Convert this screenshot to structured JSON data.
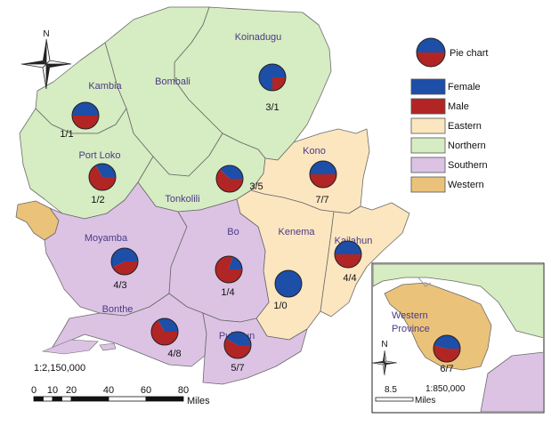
{
  "colors": {
    "northern": "#d6ecc2",
    "eastern": "#fce6c0",
    "southern": "#dcc3e4",
    "western": "#ebc27a",
    "female": "#1d4ea8",
    "male": "#b22525",
    "border": "#6a6a6a"
  },
  "north_label": "N",
  "districts": [
    {
      "id": "koinadugu",
      "name": "Koinadugu",
      "province": "northern",
      "female": 3,
      "male": 1,
      "ratio": "3/1"
    },
    {
      "id": "bombali",
      "name": "Bombali",
      "province": "northern"
    },
    {
      "id": "kambia",
      "name": "Kambia",
      "province": "northern",
      "female": 1,
      "male": 1,
      "ratio": "1/1"
    },
    {
      "id": "port-loko",
      "name": "Port Loko",
      "province": "northern",
      "female": 1,
      "male": 2,
      "ratio": "1/2"
    },
    {
      "id": "tonkolili",
      "name": "Tonkolili",
      "province": "northern",
      "female": 3,
      "male": 5,
      "ratio": "3/5"
    },
    {
      "id": "kono",
      "name": "Kono",
      "province": "eastern",
      "female": 7,
      "male": 7,
      "ratio": "7/7"
    },
    {
      "id": "kenema",
      "name": "Kenema",
      "province": "eastern",
      "female": 1,
      "male": 0,
      "ratio": "1/0"
    },
    {
      "id": "kailahun",
      "name": "Kailahun",
      "province": "eastern",
      "female": 4,
      "male": 4,
      "ratio": "4/4"
    },
    {
      "id": "moyamba",
      "name": "Moyamba",
      "province": "southern",
      "female": 4,
      "male": 3,
      "ratio": "4/3"
    },
    {
      "id": "bo",
      "name": "Bo",
      "province": "southern",
      "female": 1,
      "male": 4,
      "ratio": "1/4"
    },
    {
      "id": "bonthe",
      "name": "Bonthe",
      "province": "southern",
      "female": 4,
      "male": 8,
      "ratio": "4/8"
    },
    {
      "id": "pujehun",
      "name": "Pujehun",
      "province": "southern",
      "female": 5,
      "male": 7,
      "ratio": "5/7"
    }
  ],
  "legend": {
    "pie_label": "Pie chart",
    "items": [
      {
        "label": "Female",
        "color": "#1d4ea8"
      },
      {
        "label": "Male",
        "color": "#b22525"
      },
      {
        "label": "Eastern",
        "color": "#fce6c0"
      },
      {
        "label": "Northern",
        "color": "#d6ecc2"
      },
      {
        "label": "Southern",
        "color": "#dcc3e4"
      },
      {
        "label": "Western",
        "color": "#ebc27a"
      }
    ]
  },
  "main_scale": {
    "ratio": "1:2,150,000",
    "ticks": [
      "0",
      "10",
      "20",
      "40",
      "60",
      "80"
    ],
    "tick_values": [
      0,
      10,
      20,
      40,
      60,
      80
    ],
    "unit": "Miles"
  },
  "inset": {
    "title_line1": "Western",
    "title_line2": "Province",
    "ratio_label": "6/7",
    "female": 6,
    "male": 7,
    "scale_ratio": "1:850,000",
    "scale_tick": "8.5",
    "scale_unit": "Miles",
    "north_label": "N"
  }
}
